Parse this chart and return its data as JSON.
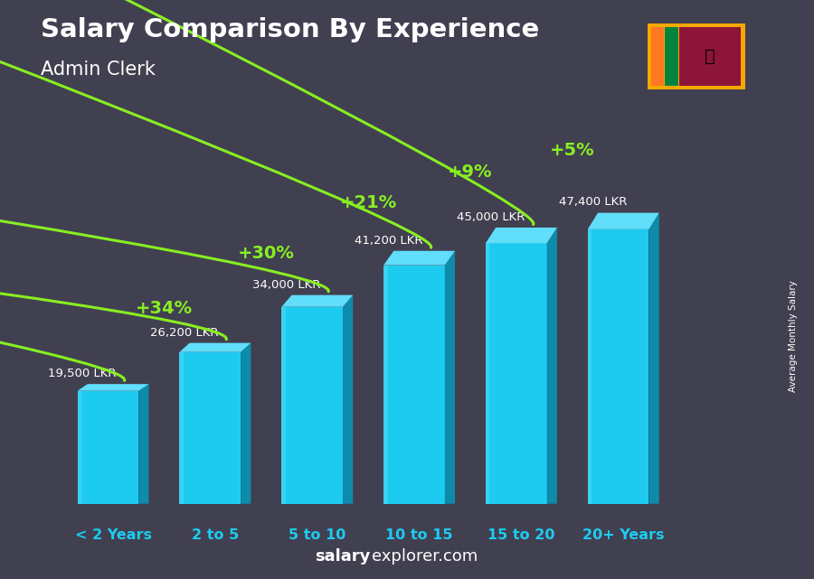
{
  "title": "Salary Comparison By Experience",
  "subtitle": "Admin Clerk",
  "categories": [
    "< 2 Years",
    "2 to 5",
    "5 to 10",
    "10 to 15",
    "15 to 20",
    "20+ Years"
  ],
  "values": [
    19500,
    26200,
    34000,
    41200,
    45000,
    47400
  ],
  "labels": [
    "19,500 LKR",
    "26,200 LKR",
    "34,000 LKR",
    "41,200 LKR",
    "45,000 LKR",
    "47,400 LKR"
  ],
  "pct_changes": [
    "+34%",
    "+30%",
    "+21%",
    "+9%",
    "+5%"
  ],
  "bar_color_face": "#1ECBF0",
  "bar_color_side": "#0E8BAA",
  "bar_color_top": "#60DEFA",
  "background_color": "#404050",
  "title_color": "#FFFFFF",
  "subtitle_color": "#FFFFFF",
  "label_color": "#FFFFFF",
  "xlabel_color": "#1ECBF0",
  "pct_color": "#88EE22",
  "footer_salary_color": "#FFFFFF",
  "footer_explorer_color": "#AAAAAA",
  "ylabel_text": "Average Monthly Salary",
  "ylim": [
    0,
    58000
  ],
  "figsize": [
    9.0,
    6.41
  ],
  "dpi": 100
}
